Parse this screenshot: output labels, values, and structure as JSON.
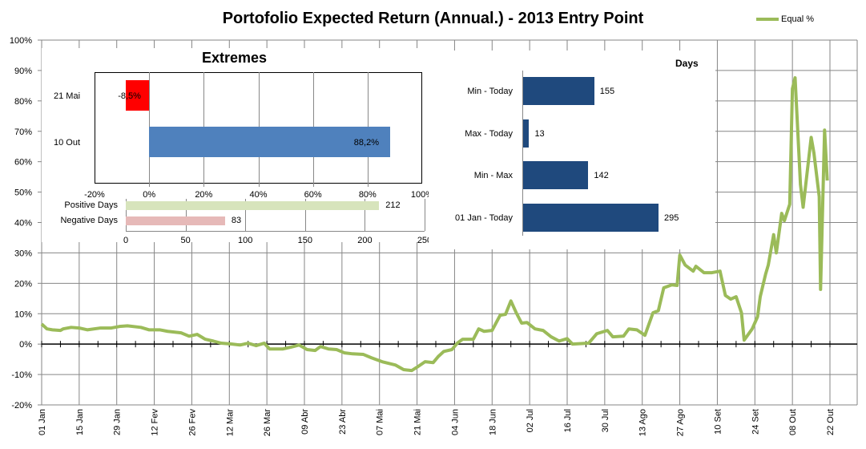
{
  "title": "Portofolio Expected Return (Annual.) - 2013 Entry Point",
  "legend": {
    "label": "Equal %",
    "color": "#9bbb59"
  },
  "chart_data": [
    {
      "type": "line",
      "name": "main",
      "title": "Portofolio Expected Return (Annual.) - 2013 Entry Point",
      "ylim": [
        -20,
        100
      ],
      "yticks": [
        "-20%",
        "-10%",
        "0%",
        "10%",
        "20%",
        "30%",
        "40%",
        "50%",
        "60%",
        "70%",
        "80%",
        "90%",
        "100%"
      ],
      "xlabel_unit": "days since 01 Jan",
      "xticks": [
        "01 Jan",
        "15 Jan",
        "29 Jan",
        "12 Fev",
        "26 Fev",
        "12 Mar",
        "26 Mar",
        "09 Abr",
        "23 Abr",
        "07 Mai",
        "21 Mai",
        "04 Jun",
        "18 Jun",
        "02 Jul",
        "16 Jul",
        "30 Jul",
        "13 Ago",
        "27 Ago",
        "10 Set",
        "24 Set",
        "08 Out",
        "22 Out"
      ],
      "series": [
        {
          "name": "Equal %",
          "color": "#9bbb59",
          "points": [
            [
              0,
              6.6
            ],
            [
              2,
              5
            ],
            [
              4,
              4.7
            ],
            [
              7,
              4.5
            ],
            [
              8,
              5
            ],
            [
              11,
              5.5
            ],
            [
              14,
              5.3
            ],
            [
              17,
              4.7
            ],
            [
              22,
              5.3
            ],
            [
              26,
              5.3
            ],
            [
              29,
              5.8
            ],
            [
              32,
              6
            ],
            [
              37,
              5.5
            ],
            [
              40,
              4.7
            ],
            [
              44,
              4.7
            ],
            [
              47,
              4.2
            ],
            [
              52,
              3.7
            ],
            [
              55,
              2.6
            ],
            [
              58,
              3.2
            ],
            [
              61,
              1.6
            ],
            [
              64,
              1
            ],
            [
              67,
              0.3
            ],
            [
              71,
              0
            ],
            [
              74,
              -0.3
            ],
            [
              77,
              0.3
            ],
            [
              80,
              -0.5
            ],
            [
              83,
              0.3
            ],
            [
              85,
              -1.6
            ],
            [
              90,
              -1.6
            ],
            [
              93,
              -1
            ],
            [
              96,
              -0.3
            ],
            [
              99,
              -1.8
            ],
            [
              102,
              -2.1
            ],
            [
              104,
              -0.8
            ],
            [
              107,
              -1.6
            ],
            [
              110,
              -1.8
            ],
            [
              113,
              -2.9
            ],
            [
              116,
              -3.2
            ],
            [
              120,
              -3.4
            ],
            [
              123,
              -4.5
            ],
            [
              127,
              -5.8
            ],
            [
              132,
              -6.9
            ],
            [
              135,
              -8.4
            ],
            [
              138,
              -8.7
            ],
            [
              140,
              -7.6
            ],
            [
              143,
              -5.8
            ],
            [
              146,
              -6.1
            ],
            [
              148,
              -4
            ],
            [
              150,
              -2.4
            ],
            [
              153,
              -1.8
            ],
            [
              155,
              0.3
            ],
            [
              157,
              1.6
            ],
            [
              161,
              1.6
            ],
            [
              163,
              5
            ],
            [
              165,
              4.2
            ],
            [
              168,
              4.5
            ],
            [
              171,
              9.5
            ],
            [
              173,
              9.8
            ],
            [
              175,
              14.2
            ],
            [
              177,
              10.3
            ],
            [
              179,
              6.9
            ],
            [
              181,
              7.1
            ],
            [
              184,
              5
            ],
            [
              187,
              4.5
            ],
            [
              190,
              2.4
            ],
            [
              193,
              1
            ],
            [
              196,
              1.8
            ],
            [
              198,
              0
            ],
            [
              204,
              0.3
            ],
            [
              207,
              3.4
            ],
            [
              211,
              4.5
            ],
            [
              213,
              2.4
            ],
            [
              217,
              2.6
            ],
            [
              219,
              5
            ],
            [
              222,
              4.7
            ],
            [
              225,
              2.9
            ],
            [
              228,
              10.3
            ],
            [
              230,
              11
            ],
            [
              232,
              18.5
            ],
            [
              235,
              19.5
            ],
            [
              237,
              19.3
            ],
            [
              238,
              29.3
            ],
            [
              240,
              26
            ],
            [
              243,
              24
            ],
            [
              244,
              25.6
            ],
            [
              247,
              23.5
            ],
            [
              250,
              23.5
            ],
            [
              253,
              24
            ],
            [
              255,
              16
            ],
            [
              257,
              14.8
            ],
            [
              259,
              15.6
            ],
            [
              261,
              10.3
            ],
            [
              262,
              1.3
            ],
            [
              265,
              5
            ],
            [
              267,
              9
            ],
            [
              268,
              15.6
            ],
            [
              270,
              23
            ],
            [
              271,
              26
            ],
            [
              273,
              36
            ],
            [
              274,
              30
            ],
            [
              276,
              43
            ],
            [
              277,
              40.6
            ],
            [
              279,
              46
            ],
            [
              280,
              84
            ],
            [
              281,
              87.6
            ],
            [
              283,
              52.5
            ],
            [
              284,
              45
            ],
            [
              287,
              68
            ],
            [
              288,
              63
            ],
            [
              290,
              48.5
            ],
            [
              290.5,
              18
            ],
            [
              292,
              70.4
            ],
            [
              293,
              53.8
            ]
          ]
        }
      ]
    },
    {
      "type": "bar",
      "name": "extremes",
      "title": "Extremes",
      "orientation": "horizontal",
      "xlim": [
        -20,
        100
      ],
      "xticks": [
        "-20%",
        "0%",
        "20%",
        "40%",
        "60%",
        "80%",
        "100%"
      ],
      "categories": [
        "21 Mai",
        "10 Out"
      ],
      "values": [
        -8.5,
        88.2
      ],
      "labels": [
        "-8,5%",
        "88,2%"
      ],
      "colors": [
        "#ff0000",
        "#4f81bd"
      ]
    },
    {
      "type": "bar",
      "name": "days-sign",
      "orientation": "horizontal",
      "xlim": [
        0,
        250
      ],
      "xticks": [
        "0",
        "50",
        "100",
        "150",
        "200",
        "250"
      ],
      "categories": [
        "Positive Days",
        "Negative Days"
      ],
      "values": [
        212,
        83
      ],
      "labels": [
        "212",
        "83"
      ],
      "colors": [
        "#d7e4bc",
        "#e6b9b8"
      ]
    },
    {
      "type": "bar",
      "name": "days",
      "title": "Days",
      "orientation": "horizontal",
      "xlim": [
        0,
        295
      ],
      "categories": [
        "Min - Today",
        "Max - Today",
        "Min - Max",
        "01 Jan - Today"
      ],
      "values": [
        155,
        13,
        142,
        295
      ],
      "labels": [
        "155",
        "13",
        "142",
        "295"
      ],
      "colors": [
        "#1f497d",
        "#1f497d",
        "#1f497d",
        "#1f497d"
      ]
    }
  ]
}
